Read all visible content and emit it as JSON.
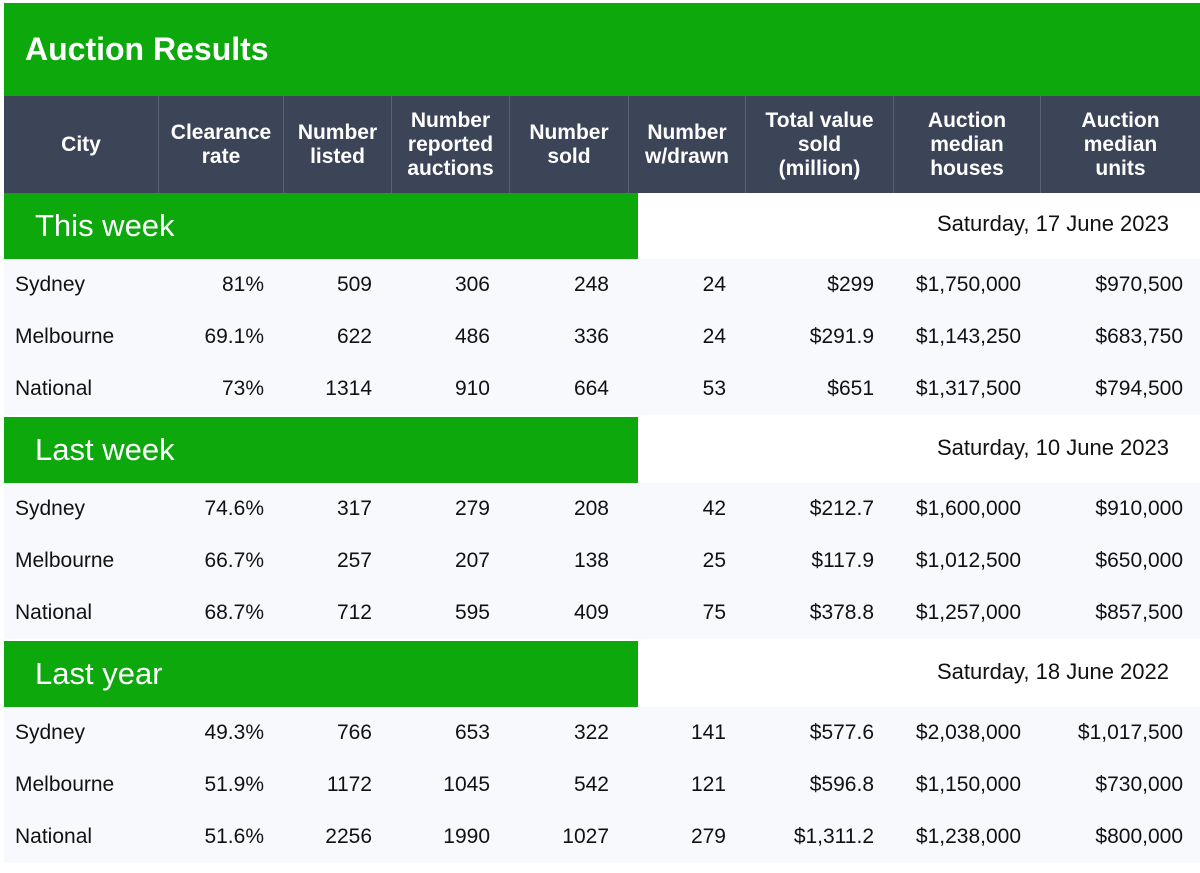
{
  "title": "Auction Results",
  "colors": {
    "green": "#0ca80c",
    "header_bg": "#3c4558"
  },
  "headers": [
    "City",
    "Clearance\nrate",
    "Number\nlisted",
    "Number\nreported\nauctions",
    "Number\nsold",
    "Number\nw/drawn",
    "Total value\nsold\n(million)",
    "Auction\nmedian\nhouses",
    "Auction\nmedian\nunits"
  ],
  "sections": [
    {
      "label": "This week",
      "date": "Saturday, 17 June 2023",
      "rows": [
        [
          "Sydney",
          "81%",
          "509",
          "306",
          "248",
          "24",
          "$299",
          "$1,750,000",
          "$970,500"
        ],
        [
          "Melbourne",
          "69.1%",
          "622",
          "486",
          "336",
          "24",
          "$291.9",
          "$1,143,250",
          "$683,750"
        ],
        [
          "National",
          "73%",
          "1314",
          "910",
          "664",
          "53",
          "$651",
          "$1,317,500",
          "$794,500"
        ]
      ]
    },
    {
      "label": "Last week",
      "date": "Saturday, 10 June 2023",
      "rows": [
        [
          "Sydney",
          "74.6%",
          "317",
          "279",
          "208",
          "42",
          "$212.7",
          "$1,600,000",
          "$910,000"
        ],
        [
          "Melbourne",
          "66.7%",
          "257",
          "207",
          "138",
          "25",
          "$117.9",
          "$1,012,500",
          "$650,000"
        ],
        [
          "National",
          "68.7%",
          "712",
          "595",
          "409",
          "75",
          "$378.8",
          "$1,257,000",
          "$857,500"
        ]
      ]
    },
    {
      "label": "Last year",
      "date": "Saturday, 18 June 2022",
      "rows": [
        [
          "Sydney",
          "49.3%",
          "766",
          "653",
          "322",
          "141",
          "$577.6",
          "$2,038,000",
          "$1,017,500"
        ],
        [
          "Melbourne",
          "51.9%",
          "1172",
          "1045",
          "542",
          "121",
          "$596.8",
          "$1,150,000",
          "$730,000"
        ],
        [
          "National",
          "51.6%",
          "2256",
          "1990",
          "1027",
          "279",
          "$1,311.2",
          "$1,238,000",
          "$800,000"
        ]
      ]
    }
  ]
}
